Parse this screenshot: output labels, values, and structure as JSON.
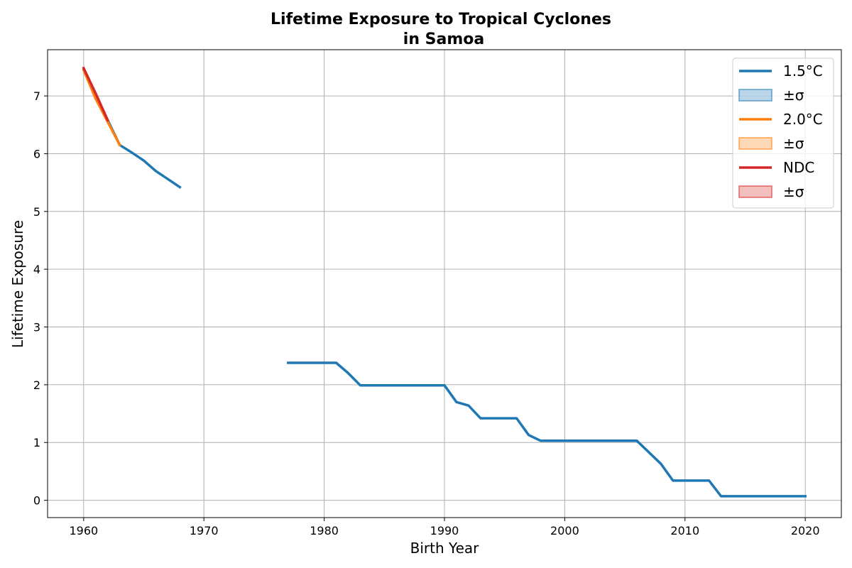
{
  "chart_data": {
    "type": "line",
    "title_line1": "Lifetime Exposure to Tropical Cyclones",
    "title_line2": "in Samoa",
    "xlabel": "Birth Year",
    "ylabel": "Lifetime Exposure",
    "xlim": [
      1957,
      2023
    ],
    "ylim": [
      -0.3,
      7.8
    ],
    "xticks": [
      1960,
      1970,
      1980,
      1990,
      2000,
      2010,
      2020
    ],
    "yticks": [
      0,
      1,
      2,
      3,
      4,
      5,
      6,
      7
    ],
    "grid": true,
    "legend_position": "top-right",
    "legend": [
      {
        "label": "1.5°C",
        "kind": "line",
        "color": "#1f77b4"
      },
      {
        "label": "±σ",
        "kind": "band",
        "color": "#1f77b4"
      },
      {
        "label": "2.0°C",
        "kind": "line",
        "color": "#ff7f0e"
      },
      {
        "label": "±σ",
        "kind": "band",
        "color": "#ff7f0e"
      },
      {
        "label": "NDC",
        "kind": "line",
        "color": "#d62728"
      },
      {
        "label": "±σ",
        "kind": "band",
        "color": "#d62728"
      }
    ],
    "series": [
      {
        "name": "1.5°C",
        "color": "#1f77b4",
        "segments": [
          [
            [
              1960,
              7.45
            ],
            [
              1961,
              7.0
            ],
            [
              1962,
              6.58
            ],
            [
              1963,
              6.15
            ],
            [
              1964,
              6.02
            ],
            [
              1965,
              5.88
            ],
            [
              1966,
              5.7
            ],
            [
              1967,
              5.56
            ],
            [
              1968,
              5.42
            ]
          ],
          [
            [
              1977,
              2.38
            ],
            [
              1978,
              2.38
            ],
            [
              1979,
              2.38
            ],
            [
              1980,
              2.38
            ],
            [
              1981,
              2.38
            ],
            [
              1982,
              2.2
            ],
            [
              1983,
              1.99
            ],
            [
              1984,
              1.99
            ],
            [
              1985,
              1.99
            ],
            [
              1986,
              1.99
            ],
            [
              1987,
              1.99
            ],
            [
              1988,
              1.99
            ],
            [
              1989,
              1.99
            ],
            [
              1990,
              1.99
            ],
            [
              1991,
              1.7
            ],
            [
              1992,
              1.64
            ],
            [
              1993,
              1.42
            ],
            [
              1994,
              1.42
            ],
            [
              1995,
              1.42
            ],
            [
              1996,
              1.42
            ],
            [
              1997,
              1.13
            ],
            [
              1998,
              1.03
            ],
            [
              1999,
              1.03
            ],
            [
              2000,
              1.03
            ],
            [
              2001,
              1.03
            ],
            [
              2002,
              1.03
            ],
            [
              2003,
              1.03
            ],
            [
              2004,
              1.03
            ],
            [
              2005,
              1.03
            ],
            [
              2006,
              1.03
            ],
            [
              2007,
              0.83
            ],
            [
              2008,
              0.63
            ],
            [
              2009,
              0.34
            ],
            [
              2010,
              0.34
            ],
            [
              2011,
              0.34
            ],
            [
              2012,
              0.34
            ],
            [
              2013,
              0.07
            ],
            [
              2014,
              0.07
            ],
            [
              2015,
              0.07
            ],
            [
              2016,
              0.07
            ],
            [
              2017,
              0.07
            ],
            [
              2018,
              0.07
            ],
            [
              2019,
              0.07
            ],
            [
              2020,
              0.07
            ]
          ]
        ]
      },
      {
        "name": "2.0°C",
        "color": "#ff7f0e",
        "segments": [
          [
            [
              1960,
              7.45
            ],
            [
              1961,
              6.95
            ],
            [
              1962,
              6.55
            ],
            [
              1963,
              6.15
            ]
          ]
        ]
      },
      {
        "name": "NDC",
        "color": "#d62728",
        "segments": [
          [
            [
              1960,
              7.48
            ],
            [
              1961,
              7.04
            ],
            [
              1962,
              6.58
            ]
          ]
        ]
      }
    ]
  }
}
